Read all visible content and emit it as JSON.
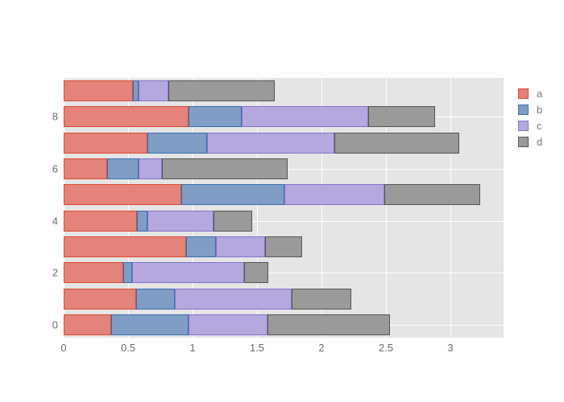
{
  "figure": {
    "background": "#ffffff",
    "plot_background": "#e5e5e5",
    "grid_color": "#ffffff",
    "tick_label_color": "#696969"
  },
  "chart_data": {
    "type": "bar",
    "orientation": "horizontal",
    "stacked": true,
    "categories": [
      0,
      1,
      2,
      3,
      4,
      5,
      6,
      7,
      8,
      9
    ],
    "series": [
      {
        "name": "a",
        "fill": "#e3837b",
        "stroke": "#da4a35",
        "values": [
          0.37,
          0.56,
          0.46,
          0.95,
          0.57,
          0.91,
          0.34,
          0.65,
          0.97,
          0.54
        ]
      },
      {
        "name": "b",
        "fill": "#7f9dc5",
        "stroke": "#3a6fb0",
        "values": [
          0.6,
          0.3,
          0.07,
          0.23,
          0.08,
          0.8,
          0.24,
          0.46,
          0.41,
          0.04
        ]
      },
      {
        "name": "c",
        "fill": "#b4a8de",
        "stroke": "#8273cb",
        "values": [
          0.61,
          0.91,
          0.87,
          0.38,
          0.51,
          0.78,
          0.18,
          0.99,
          0.98,
          0.23
        ]
      },
      {
        "name": "d",
        "fill": "#9a9a9a",
        "stroke": "#555555",
        "values": [
          0.95,
          0.46,
          0.19,
          0.29,
          0.3,
          0.74,
          0.98,
          0.97,
          0.52,
          0.83
        ]
      }
    ],
    "title": "",
    "xlabel": "",
    "ylabel": "",
    "xlim": [
      0,
      3.4125
    ],
    "grid": true,
    "legend_position": "right"
  },
  "axes": {
    "x_ticks": [
      {
        "label": "0",
        "value": 0
      },
      {
        "label": "0.5",
        "value": 0.5
      },
      {
        "label": "1",
        "value": 1
      },
      {
        "label": "1.5",
        "value": 1.5
      },
      {
        "label": "2",
        "value": 2
      },
      {
        "label": "2.5",
        "value": 2.5
      },
      {
        "label": "3",
        "value": 3
      }
    ],
    "y_ticks": [
      {
        "label": "0",
        "value": 0
      },
      {
        "label": "2",
        "value": 2
      },
      {
        "label": "4",
        "value": 4
      },
      {
        "label": "6",
        "value": 6
      },
      {
        "label": "8",
        "value": 8
      }
    ]
  },
  "legend": {
    "items": [
      {
        "label": "a"
      },
      {
        "label": "b"
      },
      {
        "label": "c"
      },
      {
        "label": "d"
      }
    ]
  }
}
